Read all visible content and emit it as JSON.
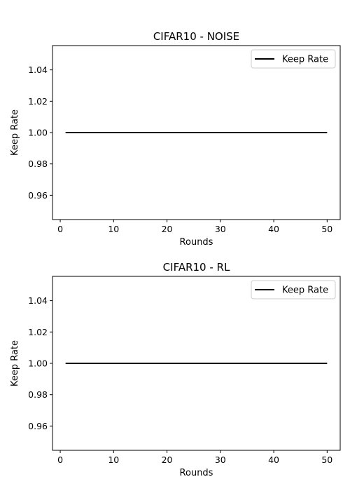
{
  "chart_data": [
    {
      "type": "line",
      "title": "CIFAR10 - NOISE",
      "xlabel": "Rounds",
      "ylabel": "Keep Rate",
      "xlim": [
        -1.45,
        52.45
      ],
      "ylim": [
        0.9445,
        1.0555
      ],
      "xticks": [
        0,
        10,
        20,
        30,
        40,
        50
      ],
      "xtick_labels": [
        "0",
        "10",
        "20",
        "30",
        "40",
        "50"
      ],
      "yticks": [
        0.96,
        0.98,
        1.0,
        1.02,
        1.04
      ],
      "ytick_labels": [
        "0.96",
        "0.98",
        "1.00",
        "1.02",
        "1.04"
      ],
      "grid": false,
      "legend_position": "top-right",
      "series": [
        {
          "name": "Keep Rate",
          "color": "#000000",
          "x": [
            1,
            50
          ],
          "y": [
            1.0,
            1.0
          ]
        }
      ]
    },
    {
      "type": "line",
      "title": "CIFAR10 - RL",
      "xlabel": "Rounds",
      "ylabel": "Keep Rate",
      "xlim": [
        -1.45,
        52.45
      ],
      "ylim": [
        0.9445,
        1.0555
      ],
      "xticks": [
        0,
        10,
        20,
        30,
        40,
        50
      ],
      "xtick_labels": [
        "0",
        "10",
        "20",
        "30",
        "40",
        "50"
      ],
      "yticks": [
        0.96,
        0.98,
        1.0,
        1.02,
        1.04
      ],
      "ytick_labels": [
        "0.96",
        "0.98",
        "1.00",
        "1.02",
        "1.04"
      ],
      "grid": false,
      "legend_position": "top-right",
      "series": [
        {
          "name": "Keep Rate",
          "color": "#000000",
          "x": [
            1,
            50
          ],
          "y": [
            1.0,
            1.0
          ]
        }
      ]
    }
  ]
}
